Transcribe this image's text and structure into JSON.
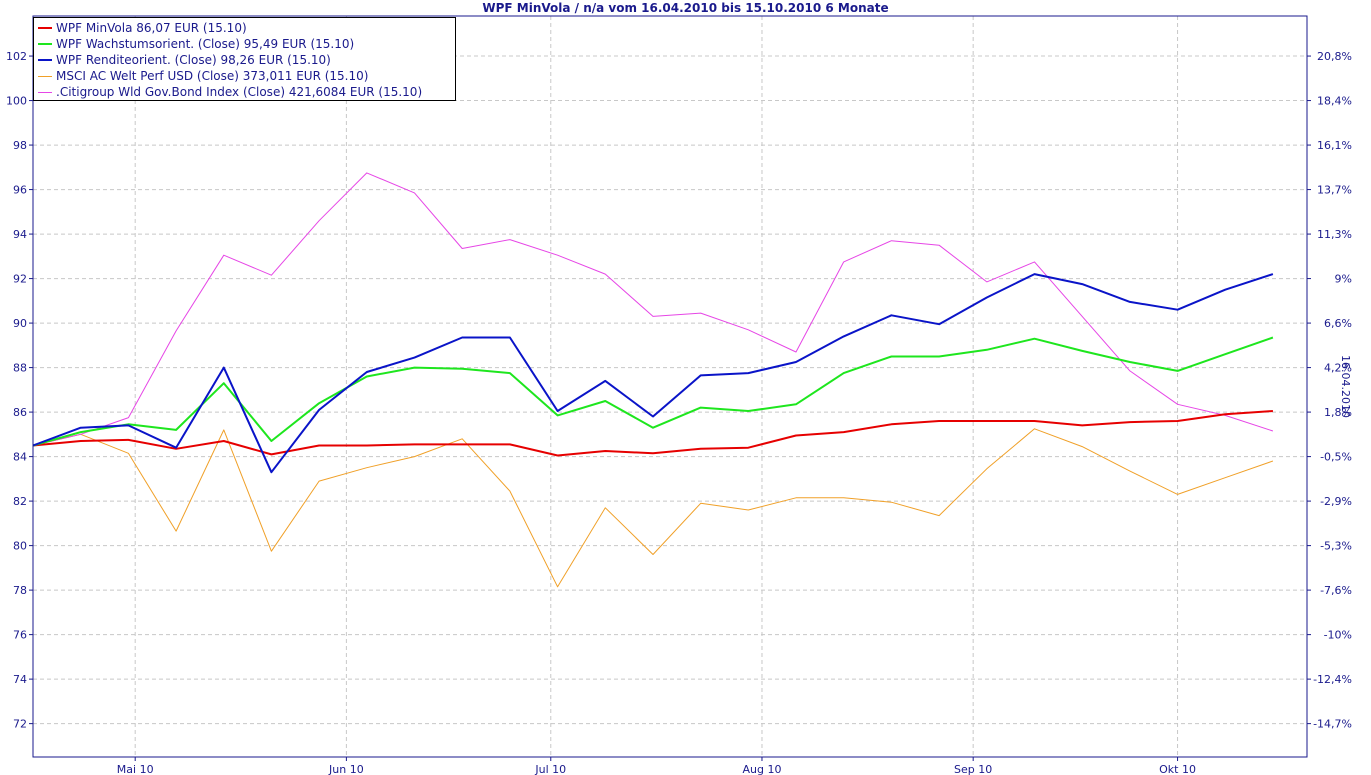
{
  "chart_data": {
    "type": "line",
    "title": "WPF MinVola / n/a vom 16.04.2010 bis 15.10.2010 6 Monate",
    "ylabel_right": "16.04.2010",
    "x_ticks": [
      "Mai 10",
      "Jun 10",
      "Jul 10",
      "Aug 10",
      "Sep 10",
      "Okt 10"
    ],
    "x_tick_dates": [
      "2010-05-01",
      "2010-06-01",
      "2010-07-01",
      "2010-08-01",
      "2010-09-01",
      "2010-10-01"
    ],
    "xlim": [
      "2010-04-16",
      "2010-10-20"
    ],
    "ylim": [
      70.5,
      103.8
    ],
    "y_ticks": [
      72,
      74,
      76,
      78,
      80,
      82,
      84,
      86,
      88,
      90,
      92,
      94,
      96,
      98,
      100,
      102
    ],
    "y_ticks_right": [
      {
        "label": "20,8%",
        "y": 102.0
      },
      {
        "label": "18,4%",
        "y": 100.0
      },
      {
        "label": "16,1%",
        "y": 98.0
      },
      {
        "label": "13,7%",
        "y": 96.0
      },
      {
        "label": "11,3%",
        "y": 94.0
      },
      {
        "label": "9%",
        "y": 92.0
      },
      {
        "label": "6,6%",
        "y": 90.0
      },
      {
        "label": "4,2%",
        "y": 88.0
      },
      {
        "label": "1,8%",
        "y": 86.0
      },
      {
        "label": "-0,5%",
        "y": 84.0
      },
      {
        "label": "-2,9%",
        "y": 82.0
      },
      {
        "label": "-5,3%",
        "y": 80.0
      },
      {
        "label": "-7,6%",
        "y": 78.0
      },
      {
        "label": "-10%",
        "y": 76.0
      },
      {
        "label": "-12,4%",
        "y": 74.0
      },
      {
        "label": "-14,7%",
        "y": 72.0
      }
    ],
    "grid": true,
    "legend_position": "top-left",
    "x": [
      "2010-04-16",
      "2010-04-23",
      "2010-04-30",
      "2010-05-07",
      "2010-05-14",
      "2010-05-21",
      "2010-05-28",
      "2010-06-04",
      "2010-06-11",
      "2010-06-18",
      "2010-06-25",
      "2010-07-02",
      "2010-07-09",
      "2010-07-16",
      "2010-07-23",
      "2010-07-30",
      "2010-08-06",
      "2010-08-13",
      "2010-08-20",
      "2010-08-27",
      "2010-09-03",
      "2010-09-10",
      "2010-09-17",
      "2010-09-24",
      "2010-10-01",
      "2010-10-08",
      "2010-10-15"
    ],
    "series": [
      {
        "name": "WPF MinVola 86,07 EUR (15.10)",
        "color": "#e60000",
        "width": 2,
        "values": [
          84.5,
          84.7,
          84.75,
          84.35,
          84.7,
          84.1,
          84.5,
          84.5,
          84.55,
          84.55,
          84.55,
          84.05,
          84.25,
          84.15,
          84.35,
          84.4,
          84.95,
          85.1,
          85.45,
          85.6,
          85.6,
          85.6,
          85.4,
          85.55,
          85.6,
          85.9,
          86.05
        ]
      },
      {
        "name": "WPF Wachstumsorient. (Close) 95,49 EUR (15.10)",
        "color": "#1ee61e",
        "width": 2,
        "values": [
          84.5,
          85.1,
          85.45,
          85.2,
          87.3,
          84.7,
          86.4,
          87.6,
          88.0,
          87.95,
          87.75,
          85.85,
          86.5,
          85.3,
          86.2,
          86.05,
          86.35,
          87.75,
          88.5,
          88.5,
          88.8,
          89.3,
          88.75,
          88.25,
          87.85,
          88.6,
          89.35
        ]
      },
      {
        "name": "WPF Renditeorient. (Close) 98,26 EUR (15.10)",
        "color": "#0a14c8",
        "width": 2,
        "values": [
          84.5,
          85.3,
          85.4,
          84.4,
          88.0,
          83.3,
          86.1,
          87.8,
          88.45,
          89.35,
          89.35,
          86.05,
          87.4,
          85.8,
          87.65,
          87.75,
          88.25,
          89.4,
          90.35,
          89.95,
          91.15,
          92.2,
          91.75,
          90.95,
          90.6,
          91.5,
          92.2
        ]
      },
      {
        "name": "MSCI AC Welt Perf USD (Close) 373,011 EUR (15.10)",
        "color": "#f0a028",
        "width": 1,
        "values": [
          84.5,
          85.0,
          84.15,
          80.65,
          85.2,
          79.75,
          82.9,
          83.5,
          84.0,
          84.8,
          82.45,
          78.15,
          81.7,
          79.6,
          81.9,
          81.6,
          82.15,
          82.15,
          81.95,
          81.35,
          83.45,
          85.25,
          84.45,
          83.35,
          82.3,
          83.05,
          83.8
        ]
      },
      {
        "name": ".Citigroup Wld Gov.Bond Index (Close) 421,6084 EUR (15.10)",
        "color": "#e646e6",
        "width": 1,
        "values": [
          84.5,
          85.0,
          85.75,
          89.65,
          93.05,
          92.15,
          94.6,
          96.75,
          95.85,
          93.35,
          93.75,
          93.05,
          92.2,
          90.3,
          90.45,
          89.7,
          88.7,
          92.75,
          93.7,
          93.5,
          91.85,
          92.75,
          90.3,
          87.85,
          86.35,
          85.85,
          85.15
        ]
      }
    ]
  }
}
